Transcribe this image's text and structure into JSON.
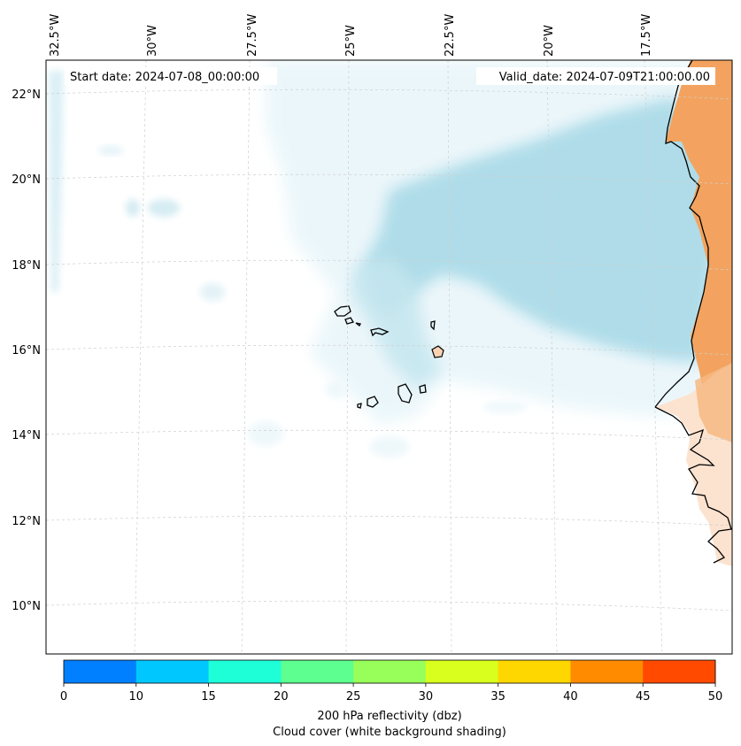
{
  "map": {
    "start_date_text": "Start date: 2024-07-08_00:00:00",
    "valid_date_text": "Valid_date: 2024-07-09T21:00:00.00",
    "lon_labels": [
      "32.5°W",
      "30°W",
      "27.5°W",
      "25°W",
      "22.5°W",
      "20°W",
      "17.5°W"
    ],
    "lat_labels": [
      "22°N",
      "20°N",
      "18°N",
      "16°N",
      "14°N",
      "12°N",
      "10°N"
    ],
    "gridlines": "dashed",
    "colors": {
      "ocean_background": "#ffffff",
      "cloud_cover": "#a9d8e6",
      "land_orange": "#f3a35f",
      "land_light": "#fbe3d0",
      "coastline": "#000000"
    }
  },
  "colorbar": {
    "title": "200 hPa reflectivity (dbz)",
    "subtitle": "Cloud cover (white background shading)",
    "tick_labels": [
      "0",
      "10",
      "15",
      "20",
      "25",
      "30",
      "35",
      "40",
      "45",
      "50"
    ],
    "colors": [
      "#0080ff",
      "#00c8ff",
      "#1effd8",
      "#5cff90",
      "#98ff5a",
      "#d8ff1e",
      "#ffd700",
      "#ff8c00",
      "#ff4a00"
    ]
  }
}
